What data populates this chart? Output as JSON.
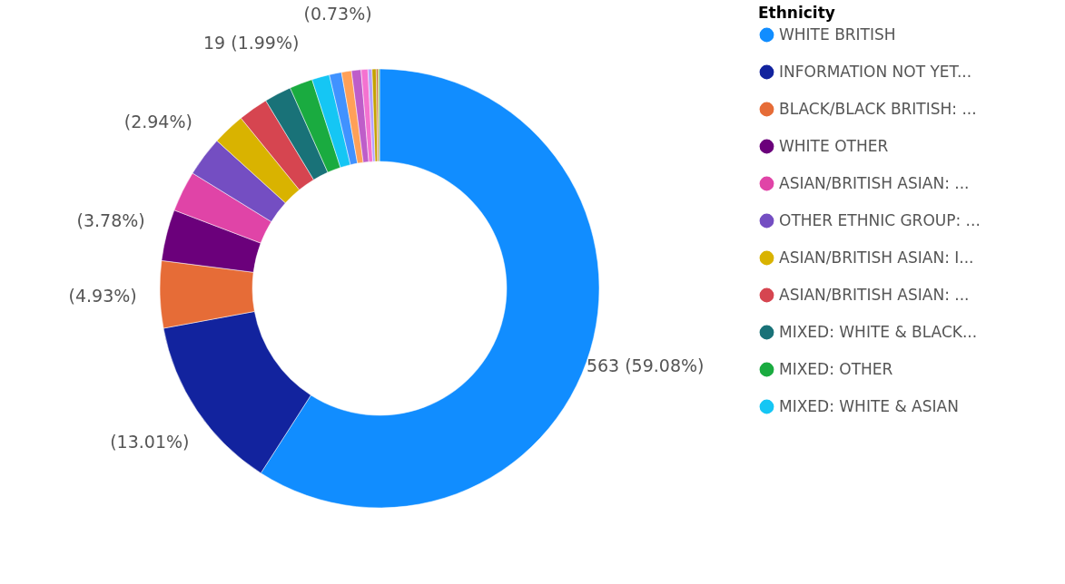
{
  "chart_data": {
    "type": "donut",
    "legend_title": "Ethnicity",
    "legend": "right",
    "categories": [
      "WHITE BRITISH",
      "INFORMATION NOT YET...",
      "BLACK/BLACK BRITISH: ...",
      "WHITE OTHER",
      "ASIAN/BRITISH ASIAN: ...",
      "OTHER ETHNIC GROUP: ...",
      "ASIAN/BRITISH ASIAN: I...",
      "ASIAN/BRITISH ASIAN: ...",
      "MIXED: WHITE & BLACK...",
      "MIXED: OTHER",
      "MIXED: WHITE & ASIAN",
      null,
      null,
      null,
      null,
      null,
      null,
      null,
      null
    ],
    "values": [
      59.08,
      13.01,
      4.93,
      3.78,
      3.0,
      2.94,
      2.4,
      2.2,
      1.99,
      1.7,
      1.3,
      0.9,
      0.73,
      0.7,
      0.5,
      0.3,
      0.3,
      0.14,
      0.1
    ],
    "value_labels": [
      "563 (59.08%)",
      "(13.01%)",
      "(4.93%)",
      "(3.78%)",
      null,
      "(2.94%)",
      null,
      null,
      "19 (1.99%)",
      null,
      null,
      null,
      "(0.73%)",
      null,
      null,
      null,
      null,
      null,
      null
    ],
    "colors": [
      "#118dff",
      "#12239e",
      "#e66c37",
      "#6b007b",
      "#e044a7",
      "#744ec2",
      "#d9b300",
      "#d64550",
      "#197278",
      "#1aab40",
      "#15c6f4",
      "#4092ff",
      "#ffa058",
      "#be5dc9",
      "#f472d0",
      "#b5a1ff",
      "#c4a200",
      "#c86a3a",
      "#93bf35"
    ]
  }
}
